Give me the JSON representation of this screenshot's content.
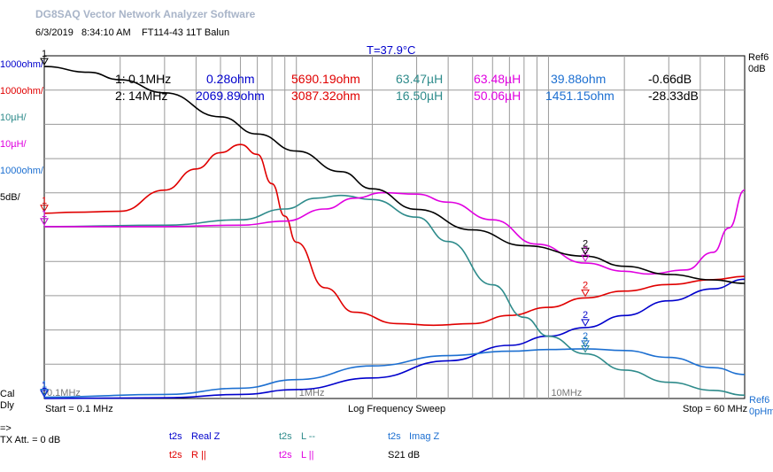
{
  "app_title": "DG8SAQ Vector Network Analyzer Software",
  "header": {
    "date": "6/3/2019",
    "time": "8:34:10 AM",
    "title": "FT114-43 11T Balun"
  },
  "temperature": "T=37.9°C",
  "left_labels": [
    {
      "text": "1000ohm/",
      "color": "#0000cc"
    },
    {
      "text": "1000ohm/",
      "color": "#e00000"
    },
    {
      "text": "10µH/",
      "color": "#2e8b8b"
    },
    {
      "text": "10µH/",
      "color": "#e000e0"
    },
    {
      "text": "1000ohm/",
      "color": "#1c6fd1"
    },
    {
      "text": "5dB/",
      "color": "#000000"
    }
  ],
  "right_top": {
    "line1": "Ref6",
    "line2": "0dB"
  },
  "right_bottom": {
    "line1": "Ref6",
    "line2": "0pHm"
  },
  "bottom_left": {
    "line1": "Cal",
    "line2": "Dly"
  },
  "markers": [
    {
      "label": "1:",
      "freq": "0.1MHz",
      "real_z": "0.28ohm",
      "r_par": "5690.19ohm",
      "l_ser": "63.47µH",
      "l_par": "63.48µH",
      "imag_z": "39.88ohm",
      "s21": "-0.66dB"
    },
    {
      "label": "2:",
      "freq": "14MHz",
      "real_z": "2069.89ohm",
      "r_par": "3087.32ohm",
      "l_ser": "16.50µH",
      "l_par": "50.06µH",
      "imag_z": "1451.15ohm",
      "s21": "-28.33dB"
    }
  ],
  "footer": {
    "start": "Start = 0.1 MHz",
    "sweep": "Log Frequency Sweep",
    "stop": "Stop = 60 MHz"
  },
  "tx": {
    "arrow": "=>",
    "att": "TX Att.  = 0 dB"
  },
  "legend": [
    {
      "prefix": "t2s",
      "name": "Real Z",
      "color": "#0000cc"
    },
    {
      "prefix": "t2s",
      "name": "L --",
      "color": "#2e8b8b"
    },
    {
      "prefix": "t2s",
      "name": "Imag Z",
      "color": "#1c6fd1"
    },
    {
      "prefix": "t2s",
      "name": "R ||",
      "color": "#e00000"
    },
    {
      "prefix": "t2s",
      "name": "L ||",
      "color": "#e000e0"
    },
    {
      "prefix": "",
      "name": "S21  dB",
      "color": "#000000"
    }
  ],
  "chart_data": {
    "type": "line",
    "xscale": "log",
    "x_tick_labels": [
      "0.1MHz",
      "1MHz",
      "10MHz"
    ],
    "xlim_mhz": [
      0.1,
      60
    ],
    "marker_positions_mhz": [
      0.1,
      14
    ],
    "series": [
      {
        "name": "Real Z",
        "color": "#0000cc",
        "unit": "ohm",
        "scale_per_div": 1000,
        "points": [
          [
            0.1,
            0.3
          ],
          [
            0.3,
            20
          ],
          [
            0.6,
            120
          ],
          [
            1,
            260
          ],
          [
            2,
            600
          ],
          [
            4,
            1100
          ],
          [
            7,
            1550
          ],
          [
            10,
            1820
          ],
          [
            14,
            2070
          ],
          [
            20,
            2420
          ],
          [
            30,
            2850
          ],
          [
            45,
            3200
          ],
          [
            60,
            3480
          ]
        ]
      },
      {
        "name": "R ||",
        "color": "#e00000",
        "unit": "ohm",
        "scale_per_div": 1000,
        "points": [
          [
            0.1,
            5690
          ],
          [
            0.13,
            5720
          ],
          [
            0.2,
            5750
          ],
          [
            0.3,
            6400
          ],
          [
            0.4,
            7050
          ],
          [
            0.5,
            7550
          ],
          [
            0.6,
            7800
          ],
          [
            0.7,
            7500
          ],
          [
            0.8,
            6600
          ],
          [
            0.9,
            5600
          ],
          [
            1,
            4800
          ],
          [
            1.3,
            3400
          ],
          [
            1.7,
            2650
          ],
          [
            2.5,
            2300
          ],
          [
            3.5,
            2250
          ],
          [
            5,
            2300
          ],
          [
            7,
            2550
          ],
          [
            10,
            2800
          ],
          [
            14,
            3090
          ],
          [
            20,
            3300
          ],
          [
            30,
            3500
          ],
          [
            45,
            3650
          ],
          [
            60,
            3750
          ]
        ]
      },
      {
        "name": "L --",
        "color": "#2e8b8b",
        "unit": "µH",
        "scale_per_div": 10,
        "points": [
          [
            0.1,
            63.5
          ],
          [
            0.3,
            64
          ],
          [
            0.6,
            66
          ],
          [
            0.9,
            70
          ],
          [
            1.2,
            74
          ],
          [
            1.5,
            75
          ],
          [
            2,
            73.5
          ],
          [
            3,
            67
          ],
          [
            4,
            58
          ],
          [
            6,
            42
          ],
          [
            8,
            30
          ],
          [
            10,
            23
          ],
          [
            14,
            16.5
          ],
          [
            20,
            10.5
          ],
          [
            30,
            6
          ],
          [
            45,
            3
          ],
          [
            60,
            1.2
          ]
        ]
      },
      {
        "name": "L ||",
        "color": "#e000e0",
        "unit": "µH",
        "scale_per_div": 10,
        "points": [
          [
            0.1,
            63.5
          ],
          [
            0.3,
            63.5
          ],
          [
            0.6,
            64
          ],
          [
            0.9,
            65.5
          ],
          [
            1.3,
            70
          ],
          [
            1.7,
            74
          ],
          [
            2.2,
            76
          ],
          [
            3,
            75.5
          ],
          [
            4,
            72.5
          ],
          [
            6,
            66
          ],
          [
            9,
            57
          ],
          [
            14,
            50
          ],
          [
            20,
            47
          ],
          [
            25,
            46
          ],
          [
            35,
            47.5
          ],
          [
            45,
            54
          ],
          [
            52,
            63
          ],
          [
            60,
            77
          ]
        ]
      },
      {
        "name": "Imag Z",
        "color": "#1c6fd1",
        "unit": "ohm",
        "scale_per_div": 1000,
        "points": [
          [
            0.1,
            40
          ],
          [
            0.3,
            120
          ],
          [
            0.6,
            300
          ],
          [
            1,
            550
          ],
          [
            2,
            950
          ],
          [
            4,
            1250
          ],
          [
            7,
            1380
          ],
          [
            10,
            1430
          ],
          [
            14,
            1450
          ],
          [
            20,
            1400
          ],
          [
            30,
            1200
          ],
          [
            45,
            900
          ],
          [
            60,
            700
          ]
        ]
      },
      {
        "name": "S21",
        "color": "#000000",
        "unit": "dB",
        "scale_per_div": 5,
        "points": [
          [
            0.1,
            -0.66
          ],
          [
            0.15,
            -1.5
          ],
          [
            0.2,
            -2.6
          ],
          [
            0.3,
            -4.5
          ],
          [
            0.5,
            -8
          ],
          [
            0.7,
            -10.5
          ],
          [
            1,
            -13
          ],
          [
            1.5,
            -16
          ],
          [
            2,
            -18.5
          ],
          [
            3,
            -21.5
          ],
          [
            5,
            -24.5
          ],
          [
            8,
            -26.8
          ],
          [
            14,
            -28.33
          ],
          [
            20,
            -29.8
          ],
          [
            30,
            -31
          ],
          [
            45,
            -31.8
          ],
          [
            60,
            -32.3
          ]
        ]
      }
    ]
  }
}
